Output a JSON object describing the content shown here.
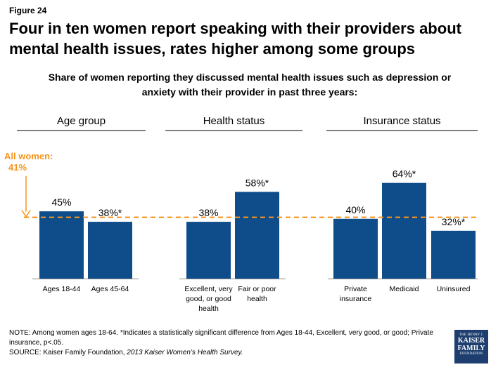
{
  "figure_label": "Figure 24",
  "title": "Four in ten women report speaking with their providers about mental health issues, rates higher among some groups",
  "subtitle": "Share of women reporting they discussed mental health issues such as depression or anxiety with their provider in past three years:",
  "reference": {
    "label_line1": "All women:",
    "label_line2": "41%",
    "value": 41,
    "color": "#f7941d"
  },
  "colors": {
    "bar": "#0e4d8a",
    "reference": "#f7941d",
    "group_line": "#555555",
    "axis": "#888888"
  },
  "chart_data": {
    "type": "bar",
    "ylim": [
      0,
      70
    ],
    "groups": [
      {
        "name": "Age group",
        "categories": [
          {
            "label": [
              "Ages 18-44"
            ],
            "value": 45,
            "data_label": "45%"
          },
          {
            "label": [
              "Ages 45-64"
            ],
            "value": 38,
            "data_label": "38%*"
          }
        ]
      },
      {
        "name": "Health status",
        "categories": [
          {
            "label": [
              "Excellent, very",
              "good, or good",
              "health"
            ],
            "value": 38,
            "data_label": "38%"
          },
          {
            "label": [
              "Fair or poor",
              "health"
            ],
            "value": 58,
            "data_label": "58%*"
          }
        ]
      },
      {
        "name": "Insurance status",
        "categories": [
          {
            "label": [
              "Private",
              "insurance"
            ],
            "value": 40,
            "data_label": "40%"
          },
          {
            "label": [
              "Medicaid"
            ],
            "value": 64,
            "data_label": "64%*"
          },
          {
            "label": [
              "Uninsured"
            ],
            "value": 32,
            "data_label": "32%*"
          }
        ]
      }
    ]
  },
  "notes": {
    "note": "NOTE: Among women ages 18-64. *Indicates a statistically significant difference from Ages 18-44, Excellent, very good, or good; Private insurance, p<.05.",
    "source_prefix": "SOURCE: Kaiser Family Foundation, ",
    "source_italic": "2013 Kaiser Women’s Health Survey."
  },
  "logo": {
    "line1": "THE HENRY J.",
    "line2": "KAISER",
    "line3": "FAMILY",
    "line4": "FOUNDATION"
  }
}
